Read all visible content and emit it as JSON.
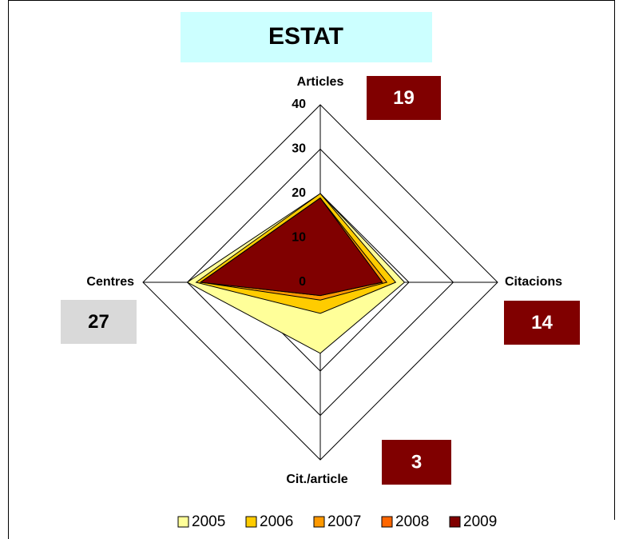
{
  "chart_data": {
    "type": "radar",
    "title": "ESTAT",
    "categories": [
      "Articles",
      "Citacions",
      "Cit./article",
      "Centres"
    ],
    "series": [
      {
        "name": "2005",
        "color": "#ffff99",
        "values": [
          20,
          19,
          16,
          30
        ]
      },
      {
        "name": "2006",
        "color": "#ffcc00",
        "values": [
          20,
          17,
          7,
          28
        ]
      },
      {
        "name": "2007",
        "color": "#ff9900",
        "values": [
          19,
          15,
          4,
          27
        ]
      },
      {
        "name": "2008",
        "color": "#ff6600",
        "values": [
          19,
          14,
          3,
          27
        ]
      },
      {
        "name": "2009",
        "color": "#800000",
        "values": [
          19,
          14,
          3,
          27
        ]
      }
    ],
    "rlim": [
      0,
      40
    ],
    "rticks": [
      0,
      10,
      20,
      30,
      40
    ],
    "grid": true,
    "annotations": [
      {
        "text": "19",
        "color": "#800000"
      },
      {
        "text": "14",
        "color": "#800000"
      },
      {
        "text": "3",
        "color": "#800000"
      },
      {
        "text": "27",
        "color": "#d9d9d9"
      }
    ],
    "legend": "bottom"
  }
}
